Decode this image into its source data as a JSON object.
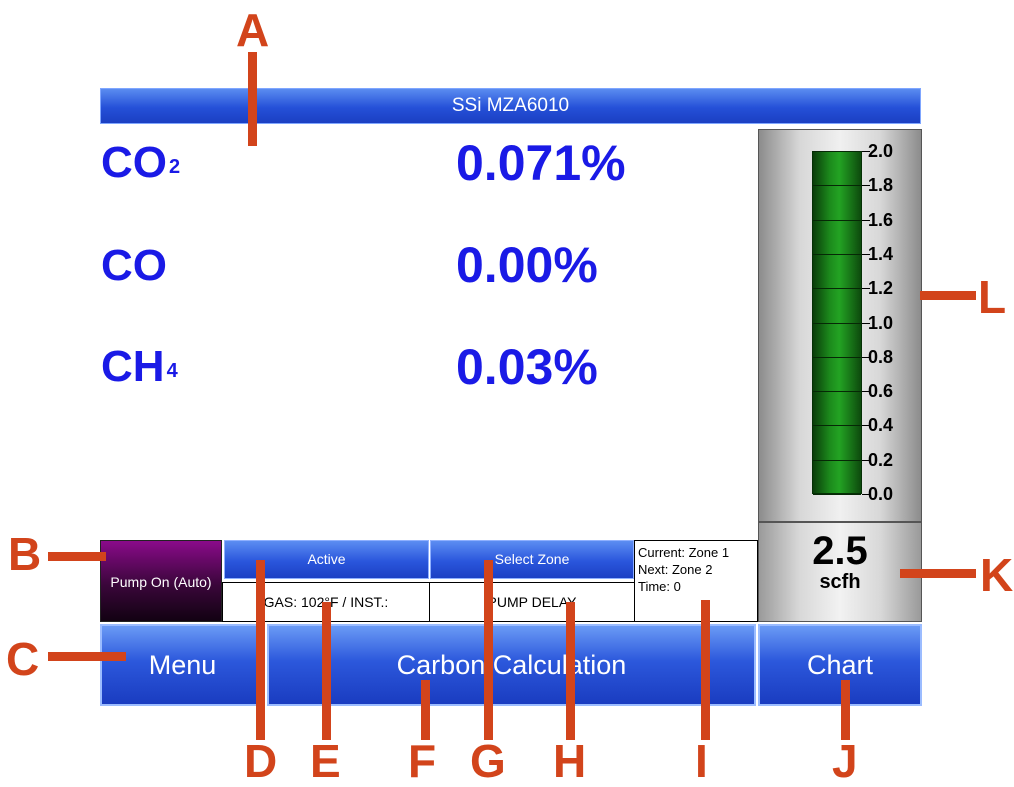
{
  "window": {
    "title": "SSi MZA6010"
  },
  "gases": [
    {
      "name": "CO",
      "sub": "2",
      "value": "0.071%"
    },
    {
      "name": "CO",
      "sub": "",
      "value": "0.00%"
    },
    {
      "name": "CH",
      "sub": "4",
      "value": "0.03%"
    }
  ],
  "flow_gauge": {
    "ticks": [
      "2.0",
      "1.8",
      "1.6",
      "1.4",
      "1.2",
      "1.0",
      "0.8",
      "0.6",
      "0.4",
      "0.2",
      "0.0"
    ],
    "value": "2.5",
    "unit": "scfh",
    "bar_color": "#1c8a1c"
  },
  "status": {
    "pump_button": "Pump On (Auto)",
    "active_button": "Active",
    "gas_temp": "GAS: 102°F / INST.:",
    "select_zone_button": "Select Zone",
    "pump_delay": "PUMP DELAY",
    "zone": {
      "current": "Current: Zone 1",
      "next": "Next: Zone 2",
      "time": "Time: 0"
    }
  },
  "bottom_buttons": {
    "menu": "Menu",
    "carbon": "Carbon Calculation",
    "chart": "Chart"
  },
  "callouts": {
    "A": "A",
    "B": "B",
    "C": "C",
    "D": "D",
    "E": "E",
    "F": "F",
    "G": "G",
    "H": "H",
    "I": "I",
    "J": "J",
    "K": "K",
    "L": "L"
  },
  "colors": {
    "title_bar": "#2550d8",
    "gas_text": "#1a1ae6",
    "pump_button": "#8a0a8a",
    "callout": "#d2441b"
  }
}
